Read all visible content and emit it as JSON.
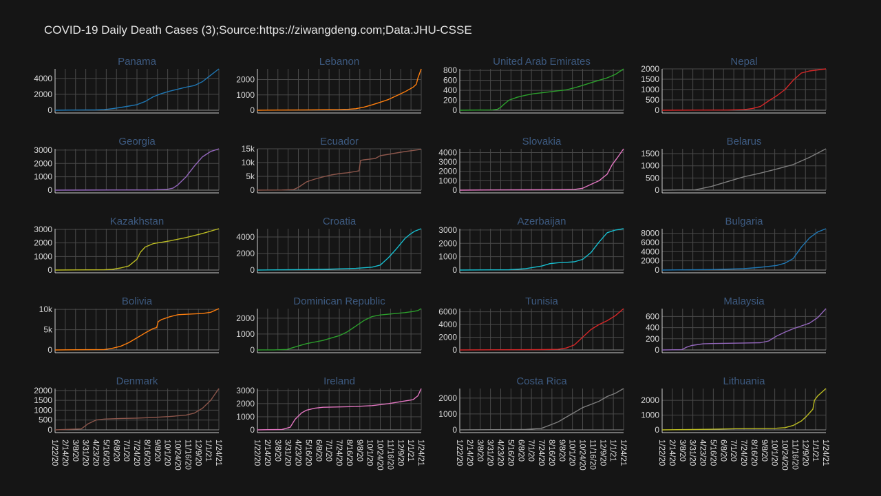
{
  "title": "COVID-19 Daily Death Cases (3);Source:https://ziwangdeng.com;Data:JHU-CSSE",
  "x_dates": [
    "1/22/20",
    "2/14/20",
    "3/8/20",
    "3/31/20",
    "4/23/20",
    "5/16/20",
    "6/8/20",
    "7/1/20",
    "7/24/20",
    "8/16/20",
    "9/8/20",
    "10/1/20",
    "10/24/20",
    "11/16/20",
    "12/9/20",
    "1/1/21",
    "1/24/21"
  ],
  "chart_data": [
    {
      "type": "line",
      "title": "Panama",
      "color": "#1f77b4",
      "yticks": [
        0,
        2000,
        4000
      ],
      "ytick_labels": [
        "0",
        "2000",
        "4000"
      ],
      "ylim": [
        0,
        5200
      ],
      "x": [
        0,
        0.25,
        0.3,
        0.35,
        0.4,
        0.45,
        0.5,
        0.55,
        0.6,
        0.65,
        0.7,
        0.75,
        0.8,
        0.85,
        0.9,
        0.95,
        1.0
      ],
      "values": [
        0,
        40,
        80,
        200,
        350,
        520,
        700,
        1100,
        1700,
        2100,
        2400,
        2650,
        2900,
        3100,
        3600,
        4400,
        5200
      ]
    },
    {
      "type": "line",
      "title": "Lebanon",
      "color": "#ff7f0e",
      "yticks": [
        0,
        1000,
        2000
      ],
      "ytick_labels": [
        "0",
        "1000",
        "2000"
      ],
      "ylim": [
        0,
        2700
      ],
      "x": [
        0,
        0.3,
        0.5,
        0.55,
        0.6,
        0.65,
        0.7,
        0.75,
        0.8,
        0.85,
        0.9,
        0.95,
        0.97,
        0.98,
        1.0
      ],
      "values": [
        0,
        20,
        40,
        60,
        100,
        200,
        350,
        520,
        700,
        950,
        1200,
        1500,
        1700,
        2100,
        2700
      ]
    },
    {
      "type": "line",
      "title": "United Arab Emirates",
      "color": "#2ca02c",
      "yticks": [
        0,
        200,
        400,
        600,
        800
      ],
      "ytick_labels": [
        "0",
        "200",
        "400",
        "600",
        "800"
      ],
      "ylim": [
        0,
        830
      ],
      "x": [
        0,
        0.2,
        0.23,
        0.25,
        0.27,
        0.3,
        0.35,
        0.4,
        0.45,
        0.5,
        0.55,
        0.6,
        0.65,
        0.7,
        0.75,
        0.8,
        0.85,
        0.9,
        0.95,
        1.0
      ],
      "values": [
        0,
        5,
        20,
        60,
        120,
        200,
        260,
        300,
        330,
        350,
        370,
        390,
        410,
        450,
        500,
        550,
        600,
        650,
        720,
        830
      ]
    },
    {
      "type": "line",
      "title": "Nepal",
      "color": "#d62728",
      "yticks": [
        0,
        500,
        1000,
        1500,
        2000
      ],
      "ytick_labels": [
        "0",
        "500",
        "1000",
        "1500",
        "2000"
      ],
      "ylim": [
        0,
        2000
      ],
      "x": [
        0,
        0.4,
        0.5,
        0.55,
        0.6,
        0.65,
        0.7,
        0.75,
        0.8,
        0.85,
        0.9,
        0.95,
        1.0
      ],
      "values": [
        0,
        10,
        30,
        80,
        180,
        450,
        700,
        1000,
        1450,
        1800,
        1900,
        1950,
        2000
      ]
    },
    {
      "type": "line",
      "title": "Georgia",
      "color": "#9467bd",
      "yticks": [
        0,
        1000,
        2000,
        3000
      ],
      "ytick_labels": [
        "0",
        "1000",
        "2000",
        "3000"
      ],
      "ylim": [
        0,
        3100
      ],
      "x": [
        0,
        0.5,
        0.6,
        0.68,
        0.72,
        0.75,
        0.8,
        0.85,
        0.9,
        0.95,
        1.0
      ],
      "values": [
        0,
        15,
        20,
        50,
        150,
        400,
        1000,
        1800,
        2500,
        2900,
        3100
      ]
    },
    {
      "type": "line",
      "title": "Ecuador",
      "color": "#8c564b",
      "yticks": [
        0,
        5000,
        10000,
        15000
      ],
      "ytick_labels": [
        "0",
        "5k",
        "10k",
        "15k"
      ],
      "ylim": [
        0,
        15000
      ],
      "x": [
        0,
        0.15,
        0.22,
        0.25,
        0.3,
        0.35,
        0.4,
        0.45,
        0.5,
        0.55,
        0.6,
        0.62,
        0.63,
        0.65,
        0.68,
        0.72,
        0.75,
        0.8,
        0.85,
        0.9,
        0.95,
        1.0
      ],
      "values": [
        0,
        50,
        200,
        1000,
        3000,
        4000,
        4800,
        5500,
        6000,
        6300,
        6800,
        7000,
        10800,
        11000,
        11200,
        11500,
        12500,
        13000,
        13500,
        14000,
        14400,
        14800
      ]
    },
    {
      "type": "line",
      "title": "Slovakia",
      "color": "#e377c2",
      "yticks": [
        0,
        1000,
        2000,
        3000,
        4000
      ],
      "ytick_labels": [
        "0",
        "1000",
        "2000",
        "3000",
        "4000"
      ],
      "ylim": [
        0,
        4400
      ],
      "x": [
        0,
        0.3,
        0.6,
        0.7,
        0.75,
        0.8,
        0.85,
        0.9,
        0.93,
        0.96,
        1.0
      ],
      "values": [
        0,
        30,
        50,
        80,
        200,
        600,
        1000,
        1700,
        2700,
        3400,
        4400
      ]
    },
    {
      "type": "line",
      "title": "Belarus",
      "color": "#7f7f7f",
      "yticks": [
        0,
        500,
        1000,
        1500
      ],
      "ytick_labels": [
        "0",
        "500",
        "1000",
        "1500"
      ],
      "ylim": [
        0,
        1700
      ],
      "x": [
        0,
        0.2,
        0.3,
        0.4,
        0.5,
        0.6,
        0.7,
        0.8,
        0.9,
        1.0
      ],
      "values": [
        0,
        10,
        150,
        350,
        550,
        700,
        870,
        1050,
        1350,
        1700
      ]
    },
    {
      "type": "line",
      "title": "Kazakhstan",
      "color": "#bcbd22",
      "yticks": [
        0,
        1000,
        2000,
        3000
      ],
      "ytick_labels": [
        "0",
        "1000",
        "2000",
        "3000"
      ],
      "ylim": [
        0,
        3050
      ],
      "x": [
        0,
        0.3,
        0.35,
        0.4,
        0.45,
        0.5,
        0.52,
        0.55,
        0.6,
        0.65,
        0.7,
        0.8,
        0.9,
        1.0
      ],
      "values": [
        0,
        20,
        50,
        150,
        300,
        800,
        1300,
        1700,
        1950,
        2050,
        2150,
        2400,
        2700,
        3050
      ]
    },
    {
      "type": "line",
      "title": "Croatia",
      "color": "#17becf",
      "yticks": [
        0,
        2000,
        4000
      ],
      "ytick_labels": [
        "0",
        "2000",
        "4000"
      ],
      "ylim": [
        0,
        5000
      ],
      "x": [
        0,
        0.4,
        0.6,
        0.7,
        0.75,
        0.8,
        0.85,
        0.9,
        0.93,
        0.96,
        1.0
      ],
      "values": [
        0,
        80,
        200,
        350,
        600,
        1500,
        2600,
        3800,
        4300,
        4700,
        5000
      ]
    },
    {
      "type": "line",
      "title": "Azerbaijan",
      "color": "#17becf",
      "yticks": [
        0,
        1000,
        2000,
        3000
      ],
      "ytick_labels": [
        "0",
        "1000",
        "2000",
        "3000"
      ],
      "ylim": [
        0,
        3100
      ],
      "x": [
        0,
        0.3,
        0.4,
        0.5,
        0.55,
        0.6,
        0.65,
        0.7,
        0.75,
        0.8,
        0.85,
        0.9,
        0.95,
        1.0
      ],
      "values": [
        0,
        20,
        100,
        300,
        480,
        550,
        580,
        620,
        800,
        1300,
        2100,
        2800,
        3000,
        3100
      ]
    },
    {
      "type": "line",
      "title": "Bulgaria",
      "color": "#1f77b4",
      "yticks": [
        0,
        2000,
        4000,
        6000,
        8000
      ],
      "ytick_labels": [
        "0",
        "2000",
        "4000",
        "6000",
        "8000"
      ],
      "ylim": [
        0,
        9000
      ],
      "x": [
        0,
        0.3,
        0.5,
        0.6,
        0.65,
        0.7,
        0.75,
        0.8,
        0.85,
        0.9,
        0.95,
        1.0
      ],
      "values": [
        0,
        100,
        300,
        600,
        800,
        1000,
        1500,
        2500,
        5000,
        7000,
        8300,
        9000
      ]
    },
    {
      "type": "line",
      "title": "Bolivia",
      "color": "#ff7f0e",
      "yticks": [
        0,
        5000,
        10000
      ],
      "ytick_labels": [
        "0",
        "5k",
        "10k"
      ],
      "ylim": [
        0,
        10200
      ],
      "x": [
        0,
        0.3,
        0.35,
        0.4,
        0.45,
        0.5,
        0.55,
        0.6,
        0.62,
        0.63,
        0.65,
        0.7,
        0.75,
        0.8,
        0.9,
        0.95,
        1.0
      ],
      "values": [
        0,
        100,
        400,
        900,
        1800,
        3000,
        4200,
        5300,
        5500,
        7000,
        7500,
        8200,
        8700,
        8800,
        9000,
        9300,
        10200
      ]
    },
    {
      "type": "line",
      "title": "Dominican Republic",
      "color": "#2ca02c",
      "yticks": [
        0,
        1000,
        2000
      ],
      "ytick_labels": [
        "0",
        "1000",
        "2000"
      ],
      "ylim": [
        0,
        2600
      ],
      "x": [
        0,
        0.1,
        0.18,
        0.25,
        0.3,
        0.35,
        0.4,
        0.45,
        0.5,
        0.55,
        0.6,
        0.65,
        0.7,
        0.75,
        0.8,
        0.9,
        0.95,
        0.98,
        1.0
      ],
      "values": [
        0,
        5,
        30,
        250,
        400,
        500,
        600,
        750,
        900,
        1150,
        1500,
        1850,
        2100,
        2200,
        2250,
        2350,
        2420,
        2480,
        2600
      ]
    },
    {
      "type": "line",
      "title": "Tunisia",
      "color": "#d62728",
      "yticks": [
        0,
        2000,
        4000,
        6000
      ],
      "ytick_labels": [
        "0",
        "2000",
        "4000",
        "6000"
      ],
      "ylim": [
        0,
        6500
      ],
      "x": [
        0,
        0.5,
        0.6,
        0.65,
        0.7,
        0.75,
        0.8,
        0.85,
        0.9,
        0.95,
        1.0
      ],
      "values": [
        0,
        50,
        100,
        300,
        800,
        2000,
        3200,
        4000,
        4600,
        5400,
        6500
      ]
    },
    {
      "type": "line",
      "title": "Malaysia",
      "color": "#9467bd",
      "yticks": [
        0,
        200,
        400,
        600
      ],
      "ytick_labels": [
        "0",
        "200",
        "400",
        "600"
      ],
      "ylim": [
        0,
        740
      ],
      "x": [
        0,
        0.12,
        0.15,
        0.18,
        0.25,
        0.3,
        0.4,
        0.5,
        0.6,
        0.65,
        0.7,
        0.75,
        0.8,
        0.85,
        0.9,
        0.95,
        1.0
      ],
      "values": [
        0,
        5,
        50,
        80,
        110,
        115,
        120,
        125,
        130,
        160,
        250,
        320,
        380,
        430,
        480,
        580,
        740
      ]
    },
    {
      "type": "line",
      "title": "Denmark",
      "color": "#8c564b",
      "yticks": [
        0,
        500,
        1000,
        1500,
        2000
      ],
      "ytick_labels": [
        "0",
        "500",
        "1000",
        "1500",
        "2000"
      ],
      "ylim": [
        0,
        2100
      ],
      "x": [
        0,
        0.16,
        0.2,
        0.25,
        0.3,
        0.4,
        0.5,
        0.6,
        0.7,
        0.8,
        0.85,
        0.9,
        0.95,
        1.0
      ],
      "values": [
        0,
        50,
        300,
        500,
        550,
        580,
        600,
        630,
        680,
        750,
        850,
        1100,
        1500,
        2100
      ]
    },
    {
      "type": "line",
      "title": "Ireland",
      "color": "#e377c2",
      "yticks": [
        0,
        1000,
        2000,
        3000
      ],
      "ytick_labels": [
        "0",
        "1000",
        "2000",
        "3000"
      ],
      "ylim": [
        0,
        3150
      ],
      "x": [
        0,
        0.15,
        0.2,
        0.23,
        0.27,
        0.3,
        0.35,
        0.4,
        0.5,
        0.6,
        0.7,
        0.8,
        0.9,
        0.95,
        0.98,
        1.0
      ],
      "values": [
        0,
        30,
        200,
        800,
        1300,
        1500,
        1650,
        1720,
        1750,
        1780,
        1850,
        2000,
        2200,
        2300,
        2600,
        3150
      ]
    },
    {
      "type": "line",
      "title": "Costa Rica",
      "color": "#7f7f7f",
      "yticks": [
        0,
        1000,
        2000
      ],
      "ytick_labels": [
        "0",
        "1000",
        "2000"
      ],
      "ylim": [
        0,
        2600
      ],
      "x": [
        0,
        0.4,
        0.5,
        0.55,
        0.6,
        0.65,
        0.7,
        0.75,
        0.8,
        0.85,
        0.9,
        0.95,
        1.0
      ],
      "values": [
        0,
        20,
        100,
        300,
        500,
        800,
        1100,
        1400,
        1600,
        1800,
        2100,
        2300,
        2600
      ]
    },
    {
      "type": "line",
      "title": "Lithuania",
      "color": "#bcbd22",
      "yticks": [
        0,
        1000,
        2000
      ],
      "ytick_labels": [
        "0",
        "1000",
        "2000"
      ],
      "ylim": [
        0,
        2800
      ],
      "x": [
        0,
        0.3,
        0.5,
        0.7,
        0.75,
        0.8,
        0.85,
        0.88,
        0.9,
        0.92,
        0.93,
        0.95,
        1.0
      ],
      "values": [
        0,
        40,
        90,
        110,
        150,
        300,
        600,
        900,
        1150,
        1400,
        2000,
        2300,
        2800
      ]
    }
  ]
}
